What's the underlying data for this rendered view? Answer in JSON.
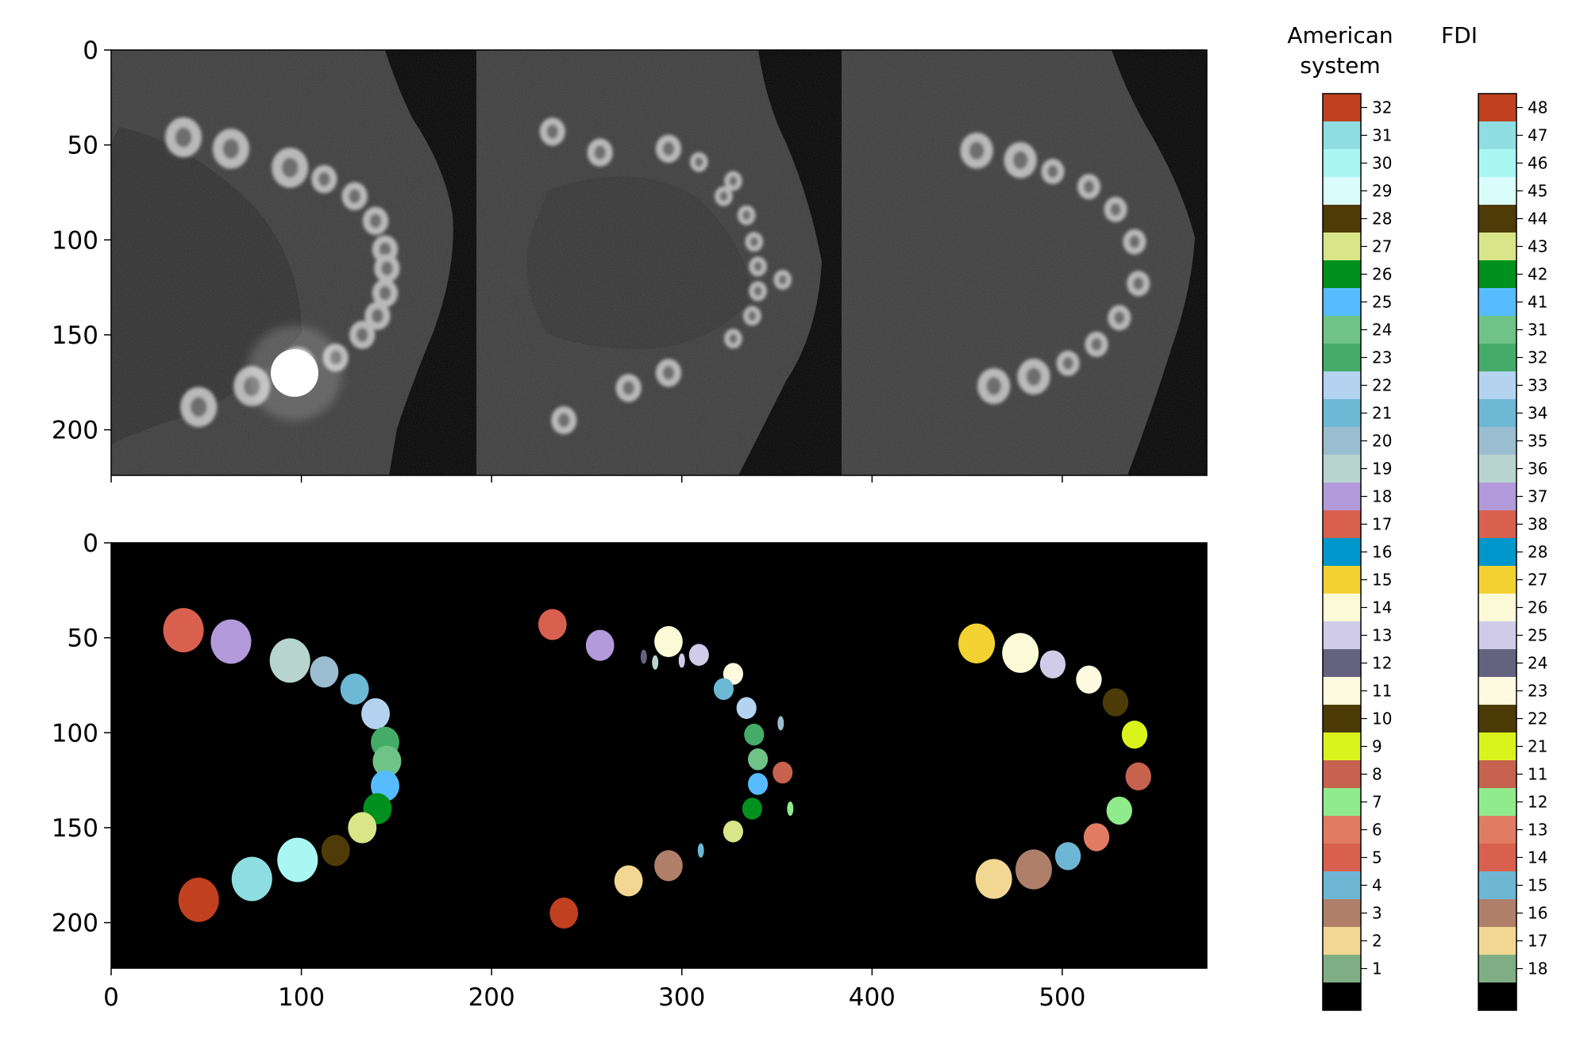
{
  "figure": {
    "colorbar_american": {
      "title_lines": [
        "American",
        "system"
      ],
      "labels": [
        "32",
        "31",
        "30",
        "29",
        "28",
        "27",
        "26",
        "25",
        "24",
        "23",
        "22",
        "21",
        "20",
        "19",
        "18",
        "17",
        "16",
        "15",
        "14",
        "13",
        "12",
        "11",
        "10",
        "9",
        "8",
        "7",
        "6",
        "5",
        "4",
        "3",
        "2",
        "1"
      ]
    },
    "colorbar_fdi": {
      "title_lines": [
        "FDI"
      ],
      "labels": [
        "48",
        "47",
        "46",
        "45",
        "44",
        "43",
        "42",
        "41",
        "31",
        "32",
        "33",
        "34",
        "35",
        "36",
        "37",
        "38",
        "28",
        "27",
        "26",
        "25",
        "24",
        "23",
        "22",
        "21",
        "11",
        "12",
        "13",
        "14",
        "15",
        "16",
        "17",
        "18"
      ]
    },
    "colors": [
      "#c1401f",
      "#8edee1",
      "#a9f7f3",
      "#d9fdfb",
      "#4f3b08",
      "#d8e588",
      "#00901e",
      "#57bcff",
      "#6fc387",
      "#45ab68",
      "#b4d3f0",
      "#6db8d5",
      "#9bbdd0",
      "#b8d4cf",
      "#b39ada",
      "#d9604e",
      "#0098cc",
      "#f3d131",
      "#fafad6",
      "#cfcbe9",
      "#65627f",
      "#fefae0",
      "#4d3b07",
      "#d9f41d",
      "#c7624f",
      "#90eb8d",
      "#e07c62",
      "#d9604e",
      "#6db7d5",
      "#b07f6a",
      "#f2d793",
      "#80ae84"
    ]
  },
  "chart_data": [
    {
      "type": "image",
      "panel": "top (CT axial slices)",
      "x_ticks": [
        0,
        100,
        200,
        300,
        400,
        500
      ],
      "x_tick_labels_visible": false,
      "y_ticks": [
        "0",
        "50",
        "100",
        "150",
        "200"
      ],
      "xlim": [
        0,
        576
      ],
      "ylim": [
        224,
        0
      ]
    },
    {
      "type": "image",
      "panel": "bottom (tooth segmentation)",
      "x_ticks": [
        "0",
        "100",
        "200",
        "300",
        "400",
        "500"
      ],
      "y_ticks": [
        "0",
        "50",
        "100",
        "150",
        "200"
      ],
      "xlim": [
        0,
        576
      ],
      "ylim": [
        224,
        0
      ],
      "segments": {
        "left": [
          {
            "tooth": 17,
            "x": 38,
            "y": 46
          },
          {
            "tooth": 18,
            "x": 63,
            "y": 52
          },
          {
            "tooth": 19,
            "x": 94,
            "y": 62
          },
          {
            "tooth": 20,
            "x": 112,
            "y": 68
          },
          {
            "tooth": 21,
            "x": 128,
            "y": 77
          },
          {
            "tooth": 22,
            "x": 139,
            "y": 90
          },
          {
            "tooth": 23,
            "x": 144,
            "y": 105
          },
          {
            "tooth": 24,
            "x": 145,
            "y": 115
          },
          {
            "tooth": 25,
            "x": 144,
            "y": 128
          },
          {
            "tooth": 26,
            "x": 140,
            "y": 140
          },
          {
            "tooth": 27,
            "x": 132,
            "y": 150
          },
          {
            "tooth": 28,
            "x": 118,
            "y": 162
          },
          {
            "tooth": 30,
            "x": 98,
            "y": 167
          },
          {
            "tooth": 31,
            "x": 74,
            "y": 177
          },
          {
            "tooth": 32,
            "x": 46,
            "y": 188
          }
        ],
        "middle": [
          {
            "tooth": 17,
            "x": 232,
            "y": 43
          },
          {
            "tooth": 18,
            "x": 257,
            "y": 54
          },
          {
            "tooth": 14,
            "x": 293,
            "y": 52
          },
          {
            "tooth": 13,
            "x": 309,
            "y": 59
          },
          {
            "tooth": 11,
            "x": 327,
            "y": 69
          },
          {
            "tooth": 21,
            "x": 322,
            "y": 77
          },
          {
            "tooth": 22,
            "x": 334,
            "y": 87
          },
          {
            "tooth": 23,
            "x": 338,
            "y": 101
          },
          {
            "tooth": 24,
            "x": 340,
            "y": 114
          },
          {
            "tooth": 25,
            "x": 340,
            "y": 127
          },
          {
            "tooth": 26,
            "x": 337,
            "y": 140
          },
          {
            "tooth": 27,
            "x": 327,
            "y": 152
          },
          {
            "tooth": 8,
            "x": 353,
            "y": 121
          },
          {
            "tooth": 2,
            "x": 272,
            "y": 178
          },
          {
            "tooth": 3,
            "x": 293,
            "y": 170
          },
          {
            "tooth": 32,
            "x": 238,
            "y": 195
          }
        ],
        "right": [
          {
            "tooth": 15,
            "x": 455,
            "y": 53
          },
          {
            "tooth": 14,
            "x": 478,
            "y": 58
          },
          {
            "tooth": 13,
            "x": 495,
            "y": 64
          },
          {
            "tooth": 11,
            "x": 514,
            "y": 72
          },
          {
            "tooth": 10,
            "x": 528,
            "y": 84
          },
          {
            "tooth": 9,
            "x": 538,
            "y": 101
          },
          {
            "tooth": 8,
            "x": 540,
            "y": 123
          },
          {
            "tooth": 7,
            "x": 530,
            "y": 141
          },
          {
            "tooth": 6,
            "x": 518,
            "y": 155
          },
          {
            "tooth": 4,
            "x": 503,
            "y": 165
          },
          {
            "tooth": 3,
            "x": 485,
            "y": 172
          },
          {
            "tooth": 2,
            "x": 464,
            "y": 177
          }
        ]
      }
    }
  ]
}
